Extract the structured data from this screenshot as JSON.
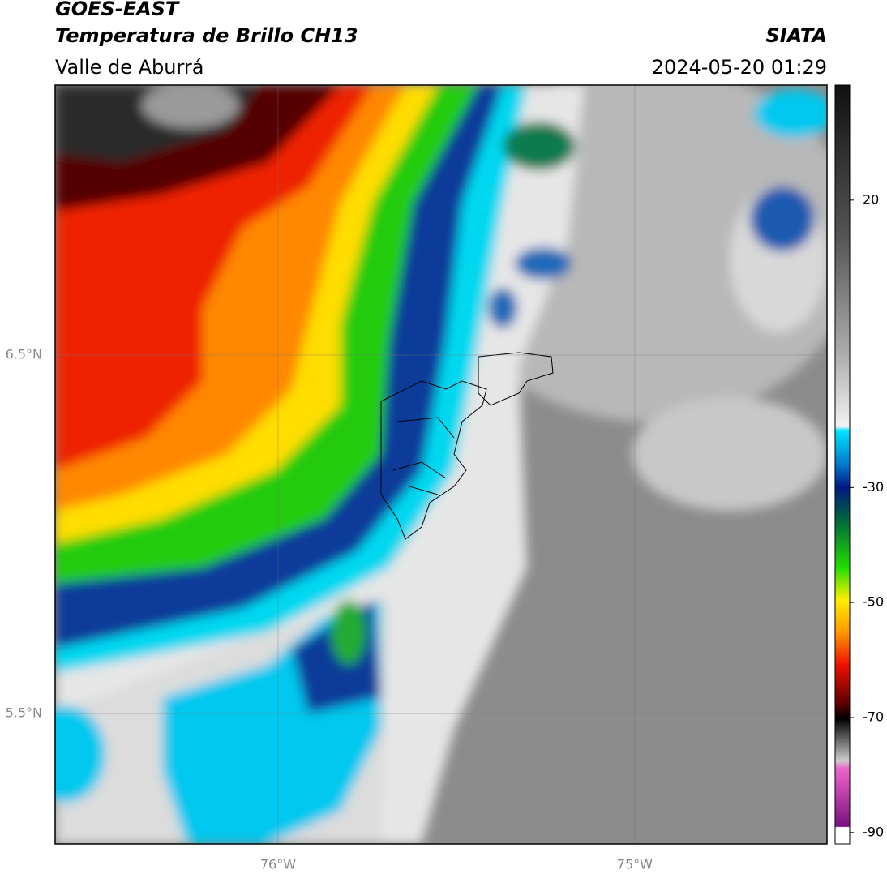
{
  "header": {
    "title": "GOES-EAST",
    "subtitle": "Temperatura de Brillo CH13",
    "region": "Valle de Aburrá",
    "source": "SIATA",
    "datetime": "2024-05-20 01:29"
  },
  "map": {
    "lonlim": [
      -76.625,
      -74.461
    ],
    "latlim": [
      5.136,
      7.253
    ],
    "lon_ticks": [
      {
        "value": -76,
        "label": "76°W"
      },
      {
        "value": -75,
        "label": "75°W"
      }
    ],
    "lat_ticks": [
      {
        "value": 6.5,
        "label": "6.5°N"
      },
      {
        "value": 5.5,
        "label": "5.5°N"
      }
    ]
  },
  "colorbar": {
    "range": [
      -92,
      40
    ],
    "ticks": [
      20,
      -30,
      -50,
      -70,
      -90
    ]
  }
}
